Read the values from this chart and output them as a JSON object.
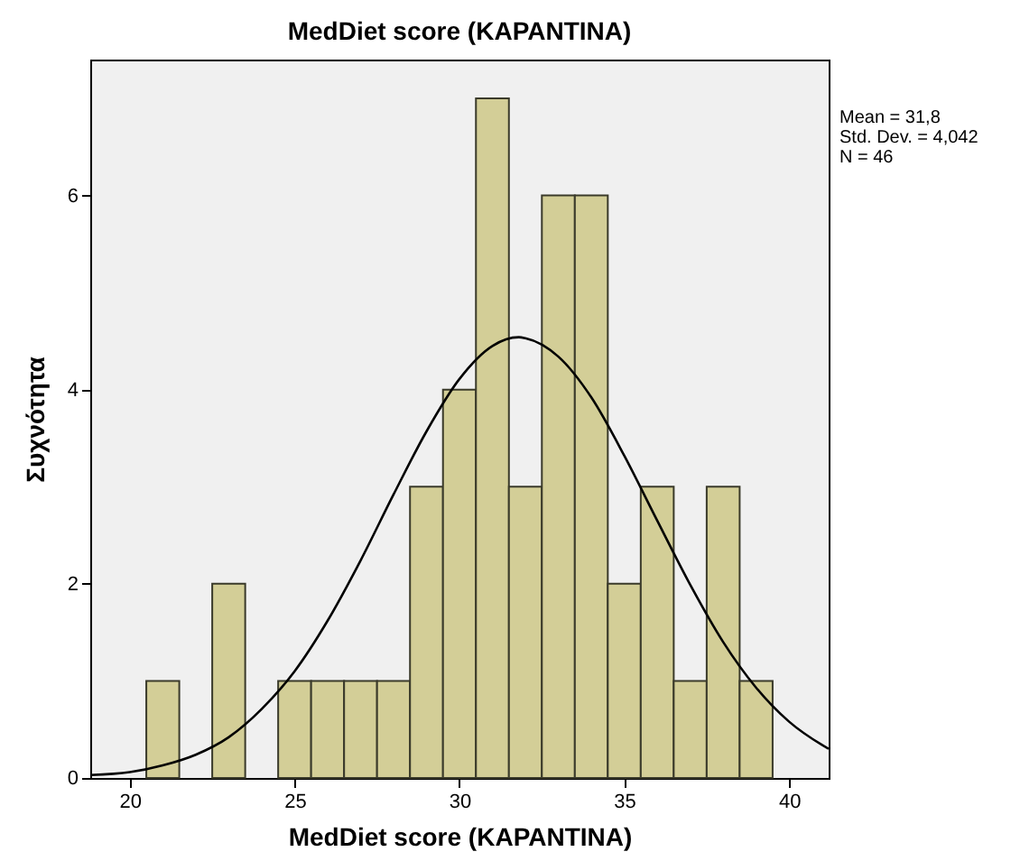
{
  "chart_data": {
    "type": "histogram",
    "title": "MedDiet score (KAPANTINA)",
    "xlabel": "MedDiet score (KAPANTINA)",
    "ylabel": "Συχνότητα",
    "bins": [
      20.5,
      21.5,
      22.5,
      23.5,
      24.5,
      25.5,
      26.5,
      27.5,
      28.5,
      29.5,
      30.5,
      31.5,
      32.5,
      33.5,
      34.5,
      35.5,
      36.5,
      37.5,
      38.5,
      39.5
    ],
    "values": [
      1,
      0,
      2,
      0,
      1,
      1,
      1,
      1,
      3,
      4,
      7,
      3,
      6,
      6,
      2,
      3,
      1,
      3,
      1
    ],
    "color": "#d3ce97",
    "series": [
      {
        "type": "line",
        "color": "#000000",
        "x": [
          18.8,
          20,
          21,
          22,
          23,
          24,
          25,
          26,
          27,
          28,
          29,
          30,
          31,
          31.8,
          32,
          33,
          34,
          35,
          36,
          37,
          38,
          39,
          40,
          41,
          41.2
        ],
        "values": [
          0.03,
          0.06,
          0.13,
          0.24,
          0.42,
          0.71,
          1.1,
          1.62,
          2.24,
          2.92,
          3.57,
          4.11,
          4.45,
          4.54,
          4.53,
          4.34,
          3.92,
          3.32,
          2.65,
          1.99,
          1.4,
          0.93,
          0.58,
          0.34,
          0.3
        ]
      }
    ],
    "xlim": [
      18.8,
      41.2
    ],
    "xticks": [
      20,
      25,
      30,
      35,
      40
    ],
    "ylim": [
      0,
      7.4
    ],
    "yticks": [
      0,
      2,
      4,
      6
    ],
    "grid": false,
    "annotations": [
      "Mean = 31,8",
      "Std. Dev. = 4,042",
      "N = 46"
    ]
  }
}
